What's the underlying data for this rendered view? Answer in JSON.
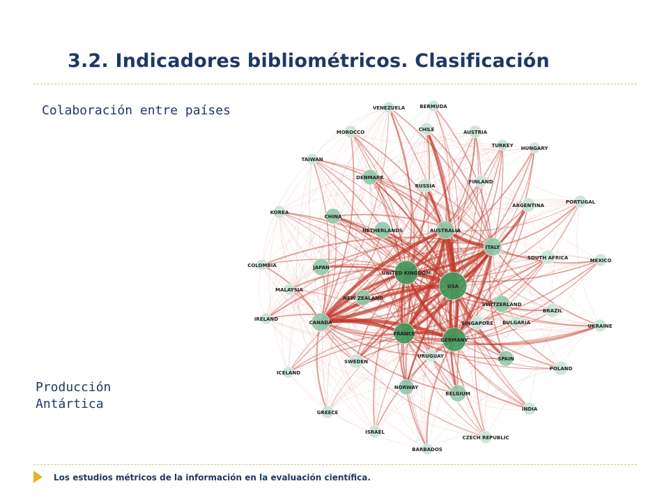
{
  "slide": {
    "title": "3.2. Indicadores bibliométricos. Clasificación",
    "subtitle": "Colaboración entre países",
    "caption_line1": "Producción",
    "caption_line2": "Antártica",
    "footer": "Los estudios métricos de la información en la evaluación científica."
  },
  "network": {
    "nodes": [
      "VENEZUELA",
      "BERMUDA",
      "CHILE",
      "MOROCCO",
      "AUSTRIA",
      "TURKEY",
      "HUNGARY",
      "TAIWAN",
      "DENMARK",
      "RUSSIA",
      "FINLAND",
      "PORTUGAL",
      "ARGENTINA",
      "KOREA",
      "CHINA",
      "NETHERLANDS",
      "AUSTRALIA",
      "ITALY",
      "SOUTH AFRICA",
      "MEXICO",
      "COLOMBIA",
      "JAPAN",
      "UNITED KINGDOM",
      "USA",
      "MALAYSIA",
      "NEW ZEALAND",
      "SWITZERLAND",
      "BRAZIL",
      "IRELAND",
      "CANADA",
      "SINGAPORE",
      "BULGARIA",
      "UKRAINE",
      "FRANCE",
      "GERMANY",
      "URUGUAY",
      "SPAIN",
      "SWEDEN",
      "POLAND",
      "ICELAND",
      "NORWAY",
      "BELGIUM",
      "INDIA",
      "GREECE",
      "ISRAEL",
      "CZECH REPUBLIC",
      "BARBADOS"
    ],
    "colors": {
      "node_light": "#c9e6d8",
      "node_mid": "#8fcaa8",
      "node_dark": "#3f9a5c",
      "edge": "#c0392b"
    }
  }
}
